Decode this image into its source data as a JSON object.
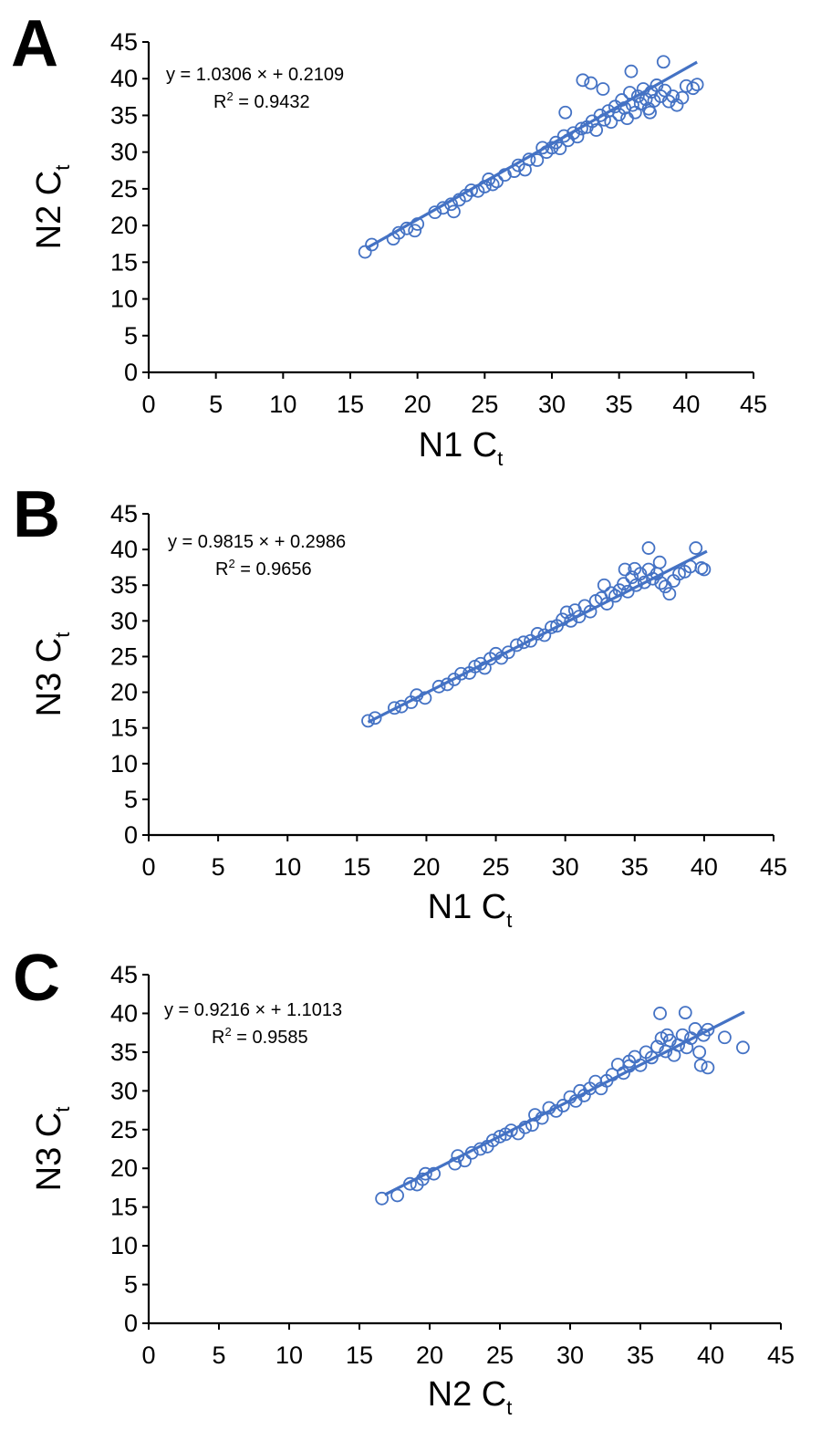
{
  "chart_data": [
    {
      "type": "scatter",
      "panel": "A",
      "xlabel": "N1 C",
      "xlabel_sub": "t",
      "ylabel": "N2 C",
      "ylabel_sub": "t",
      "xlim": [
        0,
        45
      ],
      "ylim": [
        0,
        45
      ],
      "xticks": [
        "0",
        "5",
        "10",
        "15",
        "20",
        "25",
        "30",
        "35",
        "40",
        "45"
      ],
      "yticks": [
        "0",
        "5",
        "10",
        "15",
        "20",
        "25",
        "30",
        "35",
        "40",
        "45"
      ],
      "equation": "y = 1.0306 × + 0.2109",
      "r2_prefix": "R",
      "r2_sup": "2",
      "r2_value": " = 0.9432",
      "trend": {
        "slope": 1.0306,
        "intercept": 0.2109,
        "x_range": [
          16.2,
          40.8
        ]
      },
      "color": "#4472c4",
      "points": [
        [
          16.1,
          16.4
        ],
        [
          16.6,
          17.4
        ],
        [
          18.2,
          18.2
        ],
        [
          18.6,
          19.0
        ],
        [
          19.2,
          19.6
        ],
        [
          19.8,
          19.3
        ],
        [
          20.0,
          20.2
        ],
        [
          21.3,
          21.8
        ],
        [
          21.9,
          22.4
        ],
        [
          22.5,
          22.9
        ],
        [
          22.7,
          21.9
        ],
        [
          23.1,
          23.5
        ],
        [
          23.6,
          24.1
        ],
        [
          24.0,
          24.8
        ],
        [
          24.5,
          24.7
        ],
        [
          25.0,
          25.3
        ],
        [
          25.3,
          26.3
        ],
        [
          25.6,
          25.6
        ],
        [
          25.9,
          26.0
        ],
        [
          26.5,
          26.9
        ],
        [
          27.2,
          27.4
        ],
        [
          27.5,
          28.2
        ],
        [
          28.0,
          27.6
        ],
        [
          28.3,
          29.0
        ],
        [
          28.9,
          28.9
        ],
        [
          29.3,
          30.6
        ],
        [
          29.6,
          30.0
        ],
        [
          30.0,
          30.6
        ],
        [
          30.3,
          31.3
        ],
        [
          30.6,
          30.5
        ],
        [
          30.9,
          32.2
        ],
        [
          31.2,
          31.6
        ],
        [
          31.6,
          32.6
        ],
        [
          31.9,
          32.1
        ],
        [
          32.2,
          33.2
        ],
        [
          32.6,
          33.4
        ],
        [
          33.0,
          34.2
        ],
        [
          33.3,
          33.0
        ],
        [
          33.6,
          35.0
        ],
        [
          33.9,
          34.4
        ],
        [
          34.2,
          35.6
        ],
        [
          34.4,
          34.1
        ],
        [
          34.7,
          36.2
        ],
        [
          35.0,
          35.1
        ],
        [
          35.2,
          37.1
        ],
        [
          35.4,
          36.0
        ],
        [
          35.6,
          34.6
        ],
        [
          35.8,
          38.1
        ],
        [
          36.0,
          36.4
        ],
        [
          36.2,
          35.4
        ],
        [
          36.4,
          37.6
        ],
        [
          36.6,
          36.6
        ],
        [
          36.8,
          38.6
        ],
        [
          37.0,
          37.2
        ],
        [
          37.2,
          35.9
        ],
        [
          37.4,
          38.2
        ],
        [
          37.6,
          37.0
        ],
        [
          37.8,
          39.1
        ],
        [
          38.1,
          37.6
        ],
        [
          38.4,
          38.4
        ],
        [
          38.7,
          36.9
        ],
        [
          39.0,
          37.6
        ],
        [
          39.3,
          36.4
        ],
        [
          39.7,
          37.4
        ],
        [
          40.0,
          39.0
        ],
        [
          40.5,
          38.7
        ],
        [
          40.8,
          39.2
        ],
        [
          32.3,
          39.8
        ],
        [
          32.9,
          39.4
        ],
        [
          35.9,
          41.0
        ],
        [
          38.3,
          42.3
        ],
        [
          37.3,
          35.4
        ],
        [
          31.0,
          35.4
        ],
        [
          33.8,
          38.6
        ]
      ]
    },
    {
      "type": "scatter",
      "panel": "B",
      "xlabel": "N1 C",
      "xlabel_sub": "t",
      "ylabel": "N3 C",
      "ylabel_sub": "t",
      "xlim": [
        0,
        45
      ],
      "ylim": [
        0,
        45
      ],
      "xticks": [
        "0",
        "5",
        "10",
        "15",
        "20",
        "25",
        "30",
        "35",
        "40",
        "45"
      ],
      "yticks": [
        "0",
        "5",
        "10",
        "15",
        "20",
        "25",
        "30",
        "35",
        "40",
        "45"
      ],
      "equation": "y = 0.9815 × + 0.2986",
      "r2_prefix": "R",
      "r2_sup": "2",
      "r2_value": " = 0.9656",
      "trend": {
        "slope": 0.9815,
        "intercept": 0.2986,
        "x_range": [
          15.8,
          40.2
        ]
      },
      "color": "#4472c4",
      "points": [
        [
          15.8,
          16.0
        ],
        [
          16.3,
          16.4
        ],
        [
          17.7,
          17.8
        ],
        [
          18.2,
          18.0
        ],
        [
          18.9,
          18.6
        ],
        [
          19.3,
          19.6
        ],
        [
          19.9,
          19.2
        ],
        [
          20.9,
          20.8
        ],
        [
          21.5,
          21.1
        ],
        [
          22.0,
          21.8
        ],
        [
          22.5,
          22.6
        ],
        [
          23.1,
          22.7
        ],
        [
          23.5,
          23.6
        ],
        [
          23.9,
          24.0
        ],
        [
          24.2,
          23.4
        ],
        [
          24.6,
          24.7
        ],
        [
          25.0,
          25.4
        ],
        [
          25.4,
          24.8
        ],
        [
          25.9,
          25.6
        ],
        [
          26.5,
          26.6
        ],
        [
          27.0,
          27.0
        ],
        [
          27.5,
          27.2
        ],
        [
          28.0,
          28.2
        ],
        [
          28.5,
          28.0
        ],
        [
          29.0,
          29.1
        ],
        [
          29.4,
          29.3
        ],
        [
          29.8,
          30.2
        ],
        [
          30.1,
          31.2
        ],
        [
          30.4,
          30.0
        ],
        [
          30.7,
          31.5
        ],
        [
          31.0,
          30.6
        ],
        [
          31.4,
          32.1
        ],
        [
          31.8,
          31.3
        ],
        [
          32.2,
          32.8
        ],
        [
          32.6,
          33.2
        ],
        [
          33.0,
          32.4
        ],
        [
          33.3,
          33.9
        ],
        [
          33.6,
          33.5
        ],
        [
          33.9,
          34.3
        ],
        [
          34.2,
          35.2
        ],
        [
          34.5,
          34.1
        ],
        [
          34.8,
          36.1
        ],
        [
          35.1,
          35.0
        ],
        [
          35.4,
          36.6
        ],
        [
          35.7,
          35.4
        ],
        [
          36.0,
          37.2
        ],
        [
          36.3,
          35.9
        ],
        [
          36.6,
          36.6
        ],
        [
          36.9,
          35.3
        ],
        [
          37.2,
          34.8
        ],
        [
          37.5,
          33.8
        ],
        [
          37.8,
          35.6
        ],
        [
          38.2,
          36.6
        ],
        [
          38.6,
          36.9
        ],
        [
          39.0,
          37.6
        ],
        [
          39.4,
          40.2
        ],
        [
          39.8,
          37.4
        ],
        [
          40.0,
          37.2
        ],
        [
          36.0,
          40.2
        ],
        [
          34.3,
          37.2
        ],
        [
          32.8,
          35.0
        ],
        [
          35.0,
          37.3
        ],
        [
          36.8,
          38.2
        ]
      ]
    },
    {
      "type": "scatter",
      "panel": "C",
      "xlabel": "N2 C",
      "xlabel_sub": "t",
      "ylabel": "N3 C",
      "ylabel_sub": "t",
      "xlim": [
        0,
        45
      ],
      "ylim": [
        0,
        45
      ],
      "xticks": [
        "0",
        "5",
        "10",
        "15",
        "20",
        "25",
        "30",
        "35",
        "40",
        "45"
      ],
      "yticks": [
        "0",
        "5",
        "10",
        "15",
        "20",
        "25",
        "30",
        "35",
        "40",
        "45"
      ],
      "equation": "y = 0.9216 × + 1.1013",
      "r2_prefix": "R",
      "r2_sup": "2",
      "r2_value": " = 0.9585",
      "trend": {
        "slope": 0.9216,
        "intercept": 1.1013,
        "x_range": [
          16.8,
          42.4
        ]
      },
      "color": "#4472c4",
      "points": [
        [
          16.6,
          16.1
        ],
        [
          17.7,
          16.5
        ],
        [
          18.6,
          18.0
        ],
        [
          19.1,
          17.9
        ],
        [
          19.5,
          18.6
        ],
        [
          19.7,
          19.3
        ],
        [
          20.3,
          19.3
        ],
        [
          21.8,
          20.6
        ],
        [
          22.0,
          21.6
        ],
        [
          22.5,
          21.0
        ],
        [
          23.0,
          22.0
        ],
        [
          23.6,
          22.5
        ],
        [
          24.1,
          22.8
        ],
        [
          24.5,
          23.6
        ],
        [
          25.0,
          24.1
        ],
        [
          25.4,
          24.4
        ],
        [
          25.8,
          24.9
        ],
        [
          26.3,
          24.5
        ],
        [
          26.8,
          25.3
        ],
        [
          27.3,
          25.6
        ],
        [
          27.5,
          26.9
        ],
        [
          28.0,
          26.5
        ],
        [
          28.5,
          27.8
        ],
        [
          29.0,
          27.4
        ],
        [
          29.5,
          28.1
        ],
        [
          30.0,
          29.2
        ],
        [
          30.4,
          28.7
        ],
        [
          30.7,
          30.0
        ],
        [
          31.0,
          29.4
        ],
        [
          31.4,
          30.3
        ],
        [
          31.8,
          31.2
        ],
        [
          32.2,
          30.3
        ],
        [
          32.6,
          31.3
        ],
        [
          33.0,
          32.1
        ],
        [
          33.4,
          33.4
        ],
        [
          33.8,
          32.3
        ],
        [
          34.2,
          33.2
        ],
        [
          34.6,
          34.4
        ],
        [
          35.0,
          33.3
        ],
        [
          35.4,
          35.0
        ],
        [
          35.8,
          34.3
        ],
        [
          36.2,
          35.7
        ],
        [
          36.5,
          36.8
        ],
        [
          36.8,
          35.1
        ],
        [
          37.1,
          36.5
        ],
        [
          37.4,
          34.6
        ],
        [
          37.7,
          35.9
        ],
        [
          38.0,
          37.2
        ],
        [
          38.3,
          35.6
        ],
        [
          38.6,
          36.8
        ],
        [
          38.9,
          38.0
        ],
        [
          39.2,
          35.0
        ],
        [
          39.5,
          37.2
        ],
        [
          39.8,
          37.9
        ],
        [
          41.0,
          36.9
        ],
        [
          42.3,
          35.6
        ],
        [
          36.4,
          40.0
        ],
        [
          38.2,
          40.1
        ],
        [
          39.8,
          33.0
        ],
        [
          39.3,
          33.3
        ],
        [
          36.9,
          37.2
        ],
        [
          34.2,
          33.8
        ]
      ]
    }
  ]
}
